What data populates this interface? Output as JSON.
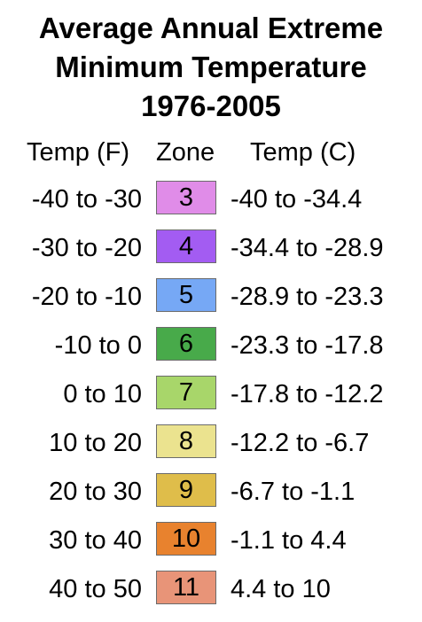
{
  "title": {
    "line1": "Average Annual Extreme",
    "line2": "Minimum Temperature",
    "line3": "1976-2005"
  },
  "headers": {
    "temp_f": "Temp (F)",
    "zone": "Zone",
    "temp_c": "Temp (C)"
  },
  "rows": [
    {
      "temp_f": "-40 to -30",
      "zone": "3",
      "temp_c": "-40 to -34.4",
      "color": "#e08ce8"
    },
    {
      "temp_f": "-30 to -20",
      "zone": "4",
      "temp_c": "-34.4 to -28.9",
      "color": "#a35cf2"
    },
    {
      "temp_f": "-20 to -10",
      "zone": "5",
      "temp_c": "-28.9 to -23.3",
      "color": "#76a8f5"
    },
    {
      "temp_f": "-10 to 0",
      "zone": "6",
      "temp_c": "-23.3 to -17.8",
      "color": "#48aa4a"
    },
    {
      "temp_f": "0 to 10",
      "zone": "7",
      "temp_c": "-17.8 to -12.2",
      "color": "#a8d66a"
    },
    {
      "temp_f": "10 to 20",
      "zone": "8",
      "temp_c": "-12.2 to -6.7",
      "color": "#ebe38f"
    },
    {
      "temp_f": "20 to 30",
      "zone": "9",
      "temp_c": "-6.7 to -1.1",
      "color": "#dfbd4a"
    },
    {
      "temp_f": "30 to 40",
      "zone": "10",
      "temp_c": "-1.1 to 4.4",
      "color": "#e8822e"
    },
    {
      "temp_f": "40 to 50",
      "zone": "11",
      "temp_c": "4.4 to 10",
      "color": "#e89478"
    }
  ]
}
